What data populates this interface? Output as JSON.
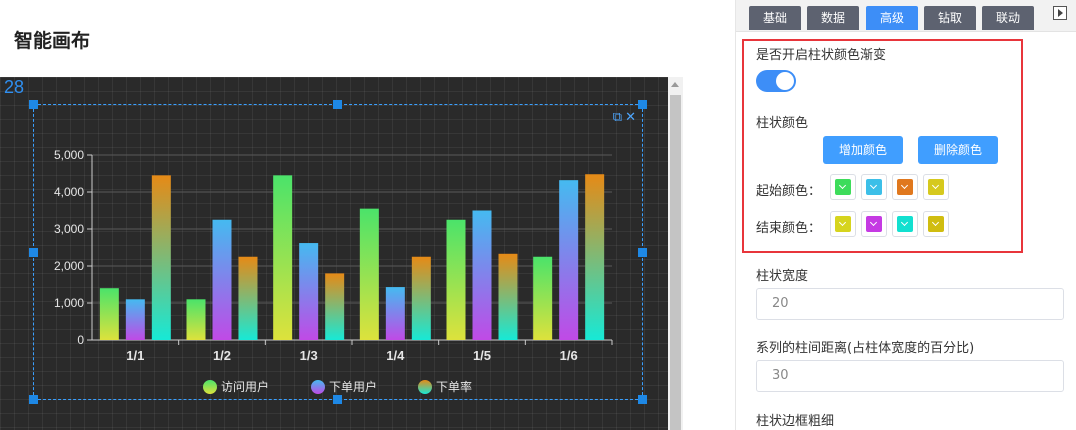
{
  "page": {
    "title": "智能画布"
  },
  "canvas": {
    "ruler_number": "28"
  },
  "tabs": [
    {
      "label": "基础",
      "active": false
    },
    {
      "label": "数据",
      "active": false
    },
    {
      "label": "高级",
      "active": true
    },
    {
      "label": "钻取",
      "active": false
    },
    {
      "label": "联动",
      "active": false
    }
  ],
  "panel": {
    "gradient_label": "是否开启柱状颜色渐变",
    "gradient_enabled": true,
    "bar_color_label": "柱状颜色",
    "add_color_button": "增加颜色",
    "remove_color_button": "删除颜色",
    "start_color_label": "起始颜色：",
    "start_colors": [
      "#3ddc5b",
      "#3cbfe8",
      "#e0781e",
      "#d6c91e"
    ],
    "end_color_label": "结束颜色：",
    "end_colors": [
      "#d6d41e",
      "#c53ae3",
      "#12e0d0",
      "#d0bd10"
    ],
    "bar_width_label": "柱状宽度",
    "bar_width_value": "20",
    "bar_gap_label": "系列的柱间距离(占柱体宽度的百分比)",
    "bar_gap_value": "30",
    "bar_border_label": "柱状边框粗细"
  },
  "chart_data": {
    "type": "bar",
    "categories": [
      "1/1",
      "1/2",
      "1/3",
      "1/4",
      "1/5",
      "1/6"
    ],
    "y_ticks": [
      "0",
      "1,000",
      "2,000",
      "3,000",
      "4,000",
      "5,000"
    ],
    "ylim": [
      0,
      5000
    ],
    "grid": true,
    "legend_position": "bottom",
    "series": [
      {
        "name": "访问用户",
        "values": [
          1400,
          1100,
          4450,
          3550,
          3250,
          2250
        ],
        "top_color": "#4be36a",
        "bottom_color": "#dde23c"
      },
      {
        "name": "下单用户",
        "values": [
          1100,
          3250,
          2620,
          1430,
          3500,
          4320
        ],
        "top_color": "#45baf0",
        "bottom_color": "#c04ae6"
      },
      {
        "name": "下单率",
        "values": [
          4450,
          2250,
          1800,
          2250,
          2330,
          4480
        ],
        "top_color": "#e68a16",
        "bottom_color": "#17e9d6"
      }
    ]
  }
}
